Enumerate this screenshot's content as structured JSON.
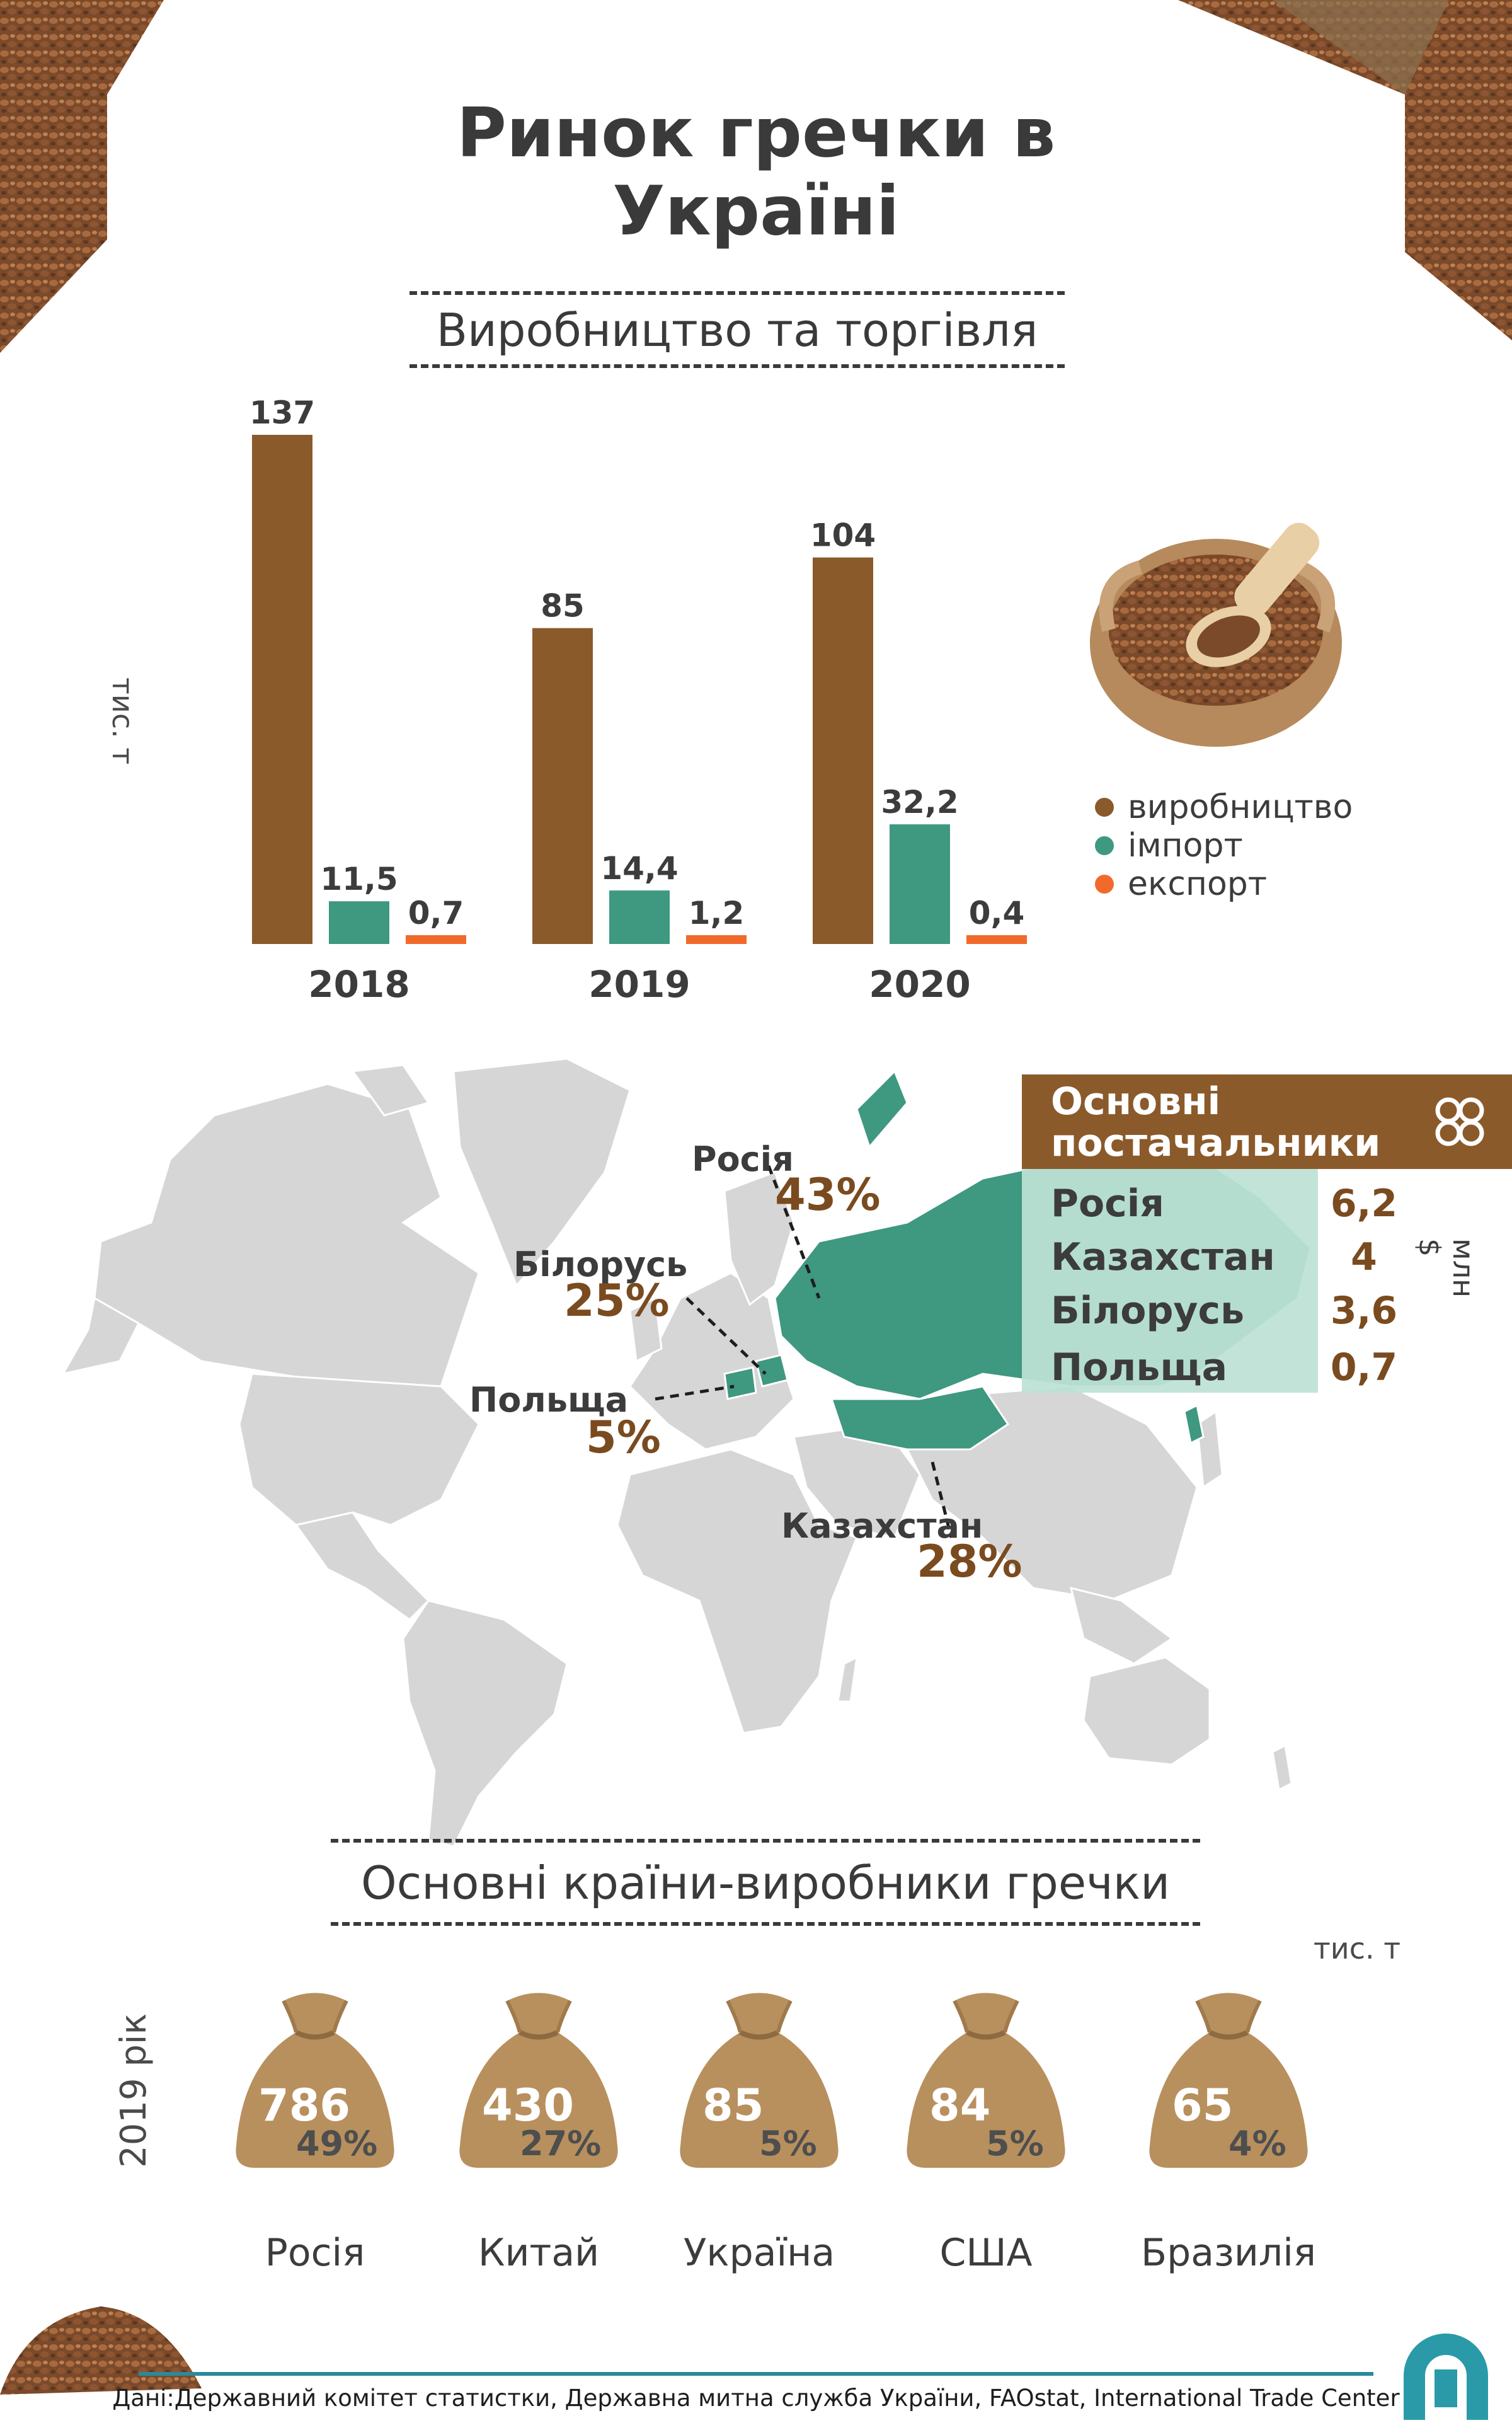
{
  "header": {
    "title_line1": "Ринок гречки в",
    "title_line2": "Україні"
  },
  "section1": {
    "title": "Виробництво та торгівля",
    "unit": "тис. т"
  },
  "chart_data": [
    {
      "type": "bar",
      "title": "Виробництво та торгівля",
      "ylabel": "тис. т",
      "categories": [
        "2018",
        "2019",
        "2020"
      ],
      "series": [
        {
          "name": "виробництво",
          "values": [
            137,
            85,
            104
          ],
          "labels": [
            "137",
            "85",
            "104"
          ],
          "color": "#8b5a2b"
        },
        {
          "name": "імпорт",
          "values": [
            11.5,
            14.4,
            32.2
          ],
          "labels": [
            "11,5",
            "14,4",
            "32,2"
          ],
          "color": "#3f9880"
        },
        {
          "name": "експорт",
          "values": [
            0.7,
            1.2,
            0.4
          ],
          "labels": [
            "0,7",
            "1,2",
            "0,4"
          ],
          "color": "#f26a2b"
        }
      ],
      "ylim": [
        0,
        137
      ],
      "legend": "right",
      "grid": false
    },
    {
      "type": "bar",
      "title": "Основні країни-виробники гречки",
      "ylabel": "тис. т",
      "xlabel": "2019 рік",
      "categories": [
        "Росія",
        "Китай",
        "Україна",
        "США",
        "Бразилія"
      ],
      "values": [
        786,
        430,
        85,
        84,
        65
      ],
      "value_labels": [
        "786",
        "430",
        "85",
        "84",
        "65"
      ],
      "shares": [
        "49%",
        "27%",
        "5%",
        "5%",
        "4%"
      ]
    }
  ],
  "map": {
    "labels": [
      {
        "country": "Росія",
        "share": "43%"
      },
      {
        "country": "Білорусь",
        "share": "25%"
      },
      {
        "country": "Польща",
        "share": "5%"
      },
      {
        "country": "Казахстан",
        "share": "28%"
      }
    ]
  },
  "suppliers": {
    "title": "Основні постачальники",
    "unit": "млн $",
    "rows": [
      {
        "country": "Росія",
        "value": "6,2"
      },
      {
        "country": "Казахстан",
        "value": "4"
      },
      {
        "country": "Білорусь",
        "value": "3,6"
      },
      {
        "country": "Польща",
        "value": "0,7"
      }
    ]
  },
  "section2": {
    "title": "Основні країни-виробники гречки",
    "unit": "тис. т",
    "year": "2019 рік"
  },
  "footer": {
    "source": "Дані:Державний комітет статистки, Державна митна служба України, FAOstat, International Trade Center"
  },
  "colors": {
    "production": "#8b5a2b",
    "import": "#3f9880",
    "export": "#f26a2b",
    "map_land": "#d6d6d6",
    "map_highlight": "#3f9880",
    "accent": "#2a8a9a"
  }
}
